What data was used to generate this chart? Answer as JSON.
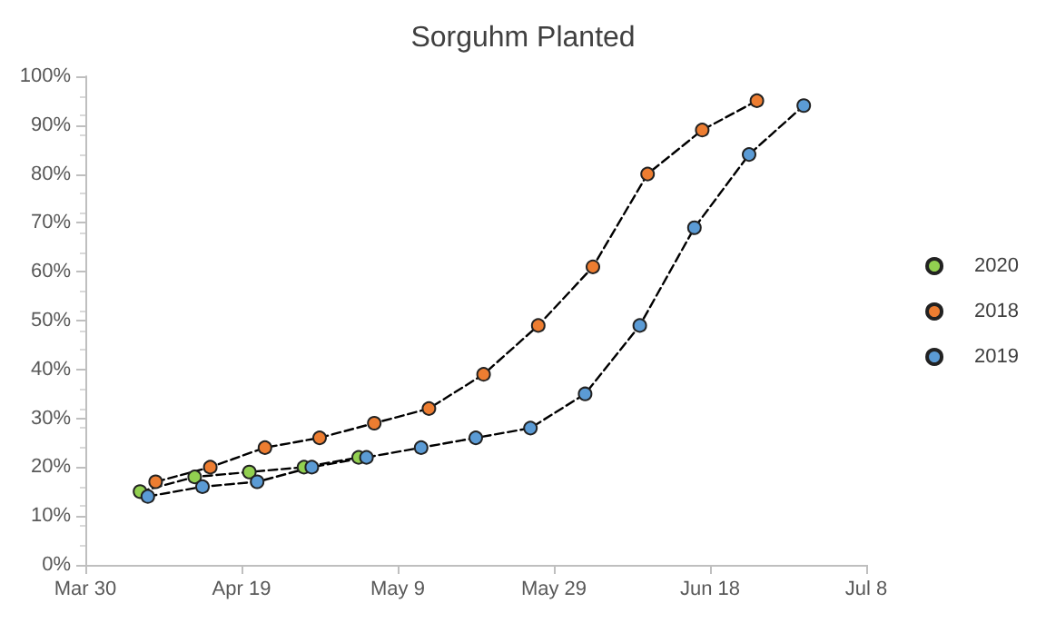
{
  "chart_data": {
    "type": "line",
    "title": "Sorguhm Planted",
    "legend": "right",
    "marker": "circle",
    "line_style": "dashed",
    "grid": false,
    "xlim": [
      "--03-30",
      "--07-08"
    ],
    "xticks": [
      {
        "value": "--03-30",
        "label": "Mar 30"
      },
      {
        "value": "--04-19",
        "label": "Apr 19"
      },
      {
        "value": "--05-09",
        "label": "May 9"
      },
      {
        "value": "--05-29",
        "label": "May 29"
      },
      {
        "value": "--06-18",
        "label": "Jun 18"
      },
      {
        "value": "--07-08",
        "label": "Jul 8"
      }
    ],
    "ylim": [
      0,
      100
    ],
    "yticks": [
      {
        "value": 0,
        "label": "0%"
      },
      {
        "value": 10,
        "label": "10%"
      },
      {
        "value": 20,
        "label": "20%"
      },
      {
        "value": 30,
        "label": "30%"
      },
      {
        "value": 40,
        "label": "40%"
      },
      {
        "value": 50,
        "label": "50%"
      },
      {
        "value": 60,
        "label": "60%"
      },
      {
        "value": 70,
        "label": "70%"
      },
      {
        "value": 80,
        "label": "80%"
      },
      {
        "value": 90,
        "label": "90%"
      },
      {
        "value": 100,
        "label": "100%"
      }
    ],
    "series": [
      {
        "name": "2020",
        "color": "#92d050",
        "x": [
          "--04-06",
          "--04-13",
          "--04-20",
          "--04-27",
          "--05-04"
        ],
        "values": [
          15,
          18,
          19,
          20,
          22
        ]
      },
      {
        "name": "2018",
        "color": "#ed7d31",
        "x": [
          "--04-08",
          "--04-15",
          "--04-22",
          "--04-29",
          "--05-06",
          "--05-13",
          "--05-20",
          "--05-27",
          "--06-03",
          "--06-10",
          "--06-17",
          "--06-24"
        ],
        "values": [
          17,
          20,
          24,
          26,
          29,
          32,
          39,
          49,
          61,
          80,
          89,
          95
        ]
      },
      {
        "name": "2019",
        "color": "#5b9bd5",
        "x": [
          "--04-07",
          "--04-14",
          "--04-21",
          "--04-28",
          "--05-05",
          "--05-12",
          "--05-19",
          "--05-26",
          "--06-02",
          "--06-09",
          "--06-16",
          "--06-23",
          "--06-30"
        ],
        "values": [
          14,
          16,
          17,
          20,
          22,
          24,
          26,
          28,
          35,
          49,
          69,
          84,
          94
        ]
      }
    ]
  }
}
